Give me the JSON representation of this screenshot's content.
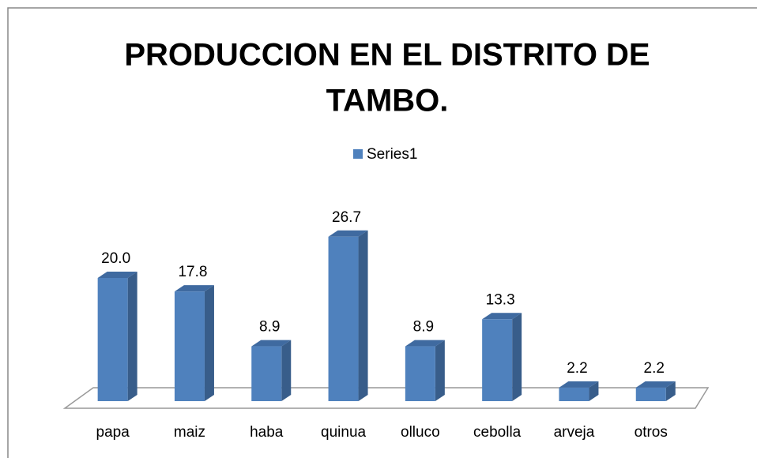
{
  "chart_data": {
    "type": "bar3d",
    "title_lines": [
      "PRODUCCION EN EL DISTRITO DE",
      "TAMBO."
    ],
    "categories": [
      "papa",
      "maiz",
      "haba",
      "quinua",
      "olluco",
      "cebolla",
      "arveja",
      "otros"
    ],
    "series": [
      {
        "name": "Series1",
        "color": "#4f81bd",
        "values": [
          20.0,
          17.8,
          8.9,
          26.7,
          8.9,
          13.3,
          2.2,
          2.2
        ],
        "value_labels": [
          "20.0",
          "17.8",
          "8.9",
          "26.7",
          "8.9",
          "13.3",
          "2.2",
          "2.2"
        ]
      }
    ],
    "legend": "top"
  }
}
